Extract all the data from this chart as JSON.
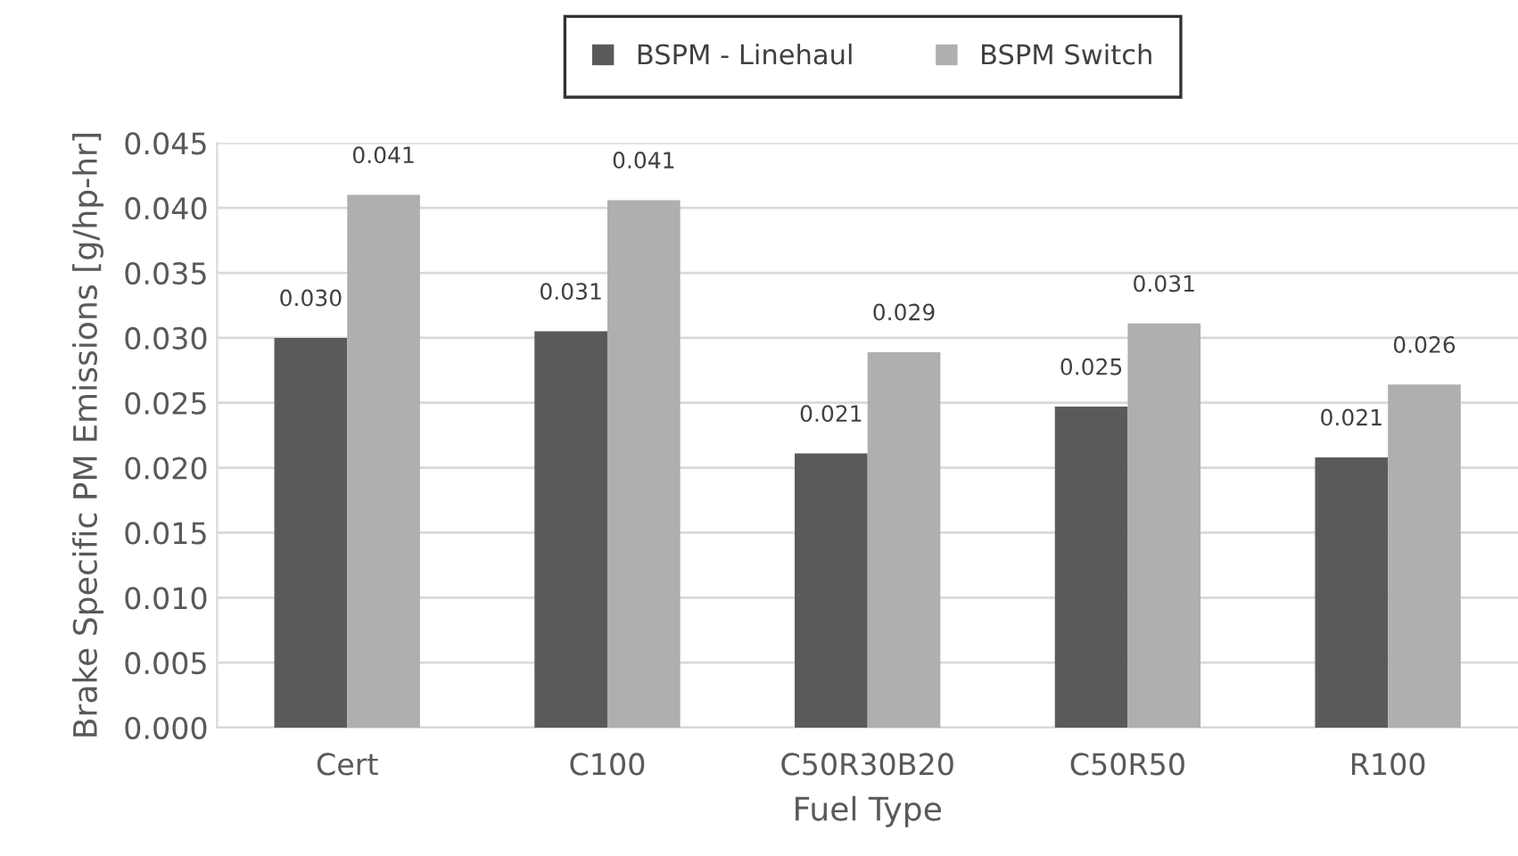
{
  "chart_data": {
    "type": "bar",
    "xlabel": "Fuel Type",
    "ylabel": "Brake Specific PM Emissions [g/hp-hr]",
    "categories": [
      "Cert",
      "C100",
      "C50R30B20",
      "C50R50",
      "R100"
    ],
    "series": [
      {
        "name": "BSPM - Linehaul",
        "color": "#5a5a5a",
        "values": [
          0.03,
          0.0305,
          0.0211,
          0.0247,
          0.0208
        ],
        "value_labels": [
          "0.030",
          "0.031",
          "0.021",
          "0.025",
          "0.021"
        ]
      },
      {
        "name": "BSPM Switch",
        "color": "#afafaf",
        "values": [
          0.041,
          0.0406,
          0.0289,
          0.0311,
          0.0264
        ],
        "value_labels": [
          "0.041",
          "0.041",
          "0.029",
          "0.031",
          "0.026"
        ]
      }
    ],
    "ylim": [
      0,
      0.045
    ],
    "yticks": [
      "0.000",
      "0.005",
      "0.010",
      "0.015",
      "0.020",
      "0.025",
      "0.030",
      "0.035",
      "0.040",
      "0.045"
    ],
    "grid": "y",
    "legend": "top"
  }
}
